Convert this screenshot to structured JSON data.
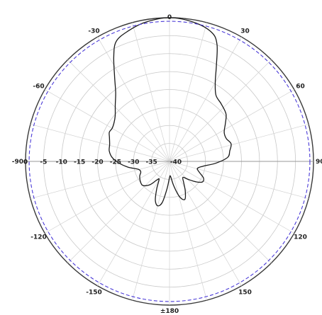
{
  "chart_data": {
    "type": "polar-line",
    "title": "",
    "angular_unit": "deg",
    "zero_direction": "top",
    "angle_direction": "clockwise",
    "angle_ticks": [
      {
        "value": 0,
        "label": "0"
      },
      {
        "value": 30,
        "label": "30"
      },
      {
        "value": 60,
        "label": "60"
      },
      {
        "value": 90,
        "label": "90"
      },
      {
        "value": 120,
        "label": "120"
      },
      {
        "value": 150,
        "label": "150"
      },
      {
        "value": 180,
        "label": "±180"
      },
      {
        "value": -150,
        "label": "-150"
      },
      {
        "value": -120,
        "label": "-120"
      },
      {
        "value": -90,
        "label": "-90"
      },
      {
        "value": -60,
        "label": "-60"
      },
      {
        "value": -30,
        "label": "-30"
      }
    ],
    "radial_range": [
      -40,
      0
    ],
    "radial_ticks": [
      {
        "value": 0,
        "label": "0"
      },
      {
        "value": -5,
        "label": "-5"
      },
      {
        "value": -10,
        "label": "-10"
      },
      {
        "value": -15,
        "label": "-15"
      },
      {
        "value": -20,
        "label": "-20"
      },
      {
        "value": -25,
        "label": "-25"
      },
      {
        "value": -30,
        "label": "-30"
      },
      {
        "value": -35,
        "label": "-35"
      },
      {
        "value": -40,
        "label": "-40"
      }
    ],
    "grid": true,
    "series": [
      {
        "color": "#1a1a1a",
        "style": "solid",
        "points": [
          {
            "angle": 0,
            "r": 0
          },
          {
            "angle": 10,
            "r": -0.7
          },
          {
            "angle": 18,
            "r": -2.2
          },
          {
            "angle": 22,
            "r": -4.8
          },
          {
            "angle": 26,
            "r": -10.3
          },
          {
            "angle": 30,
            "r": -14.6
          },
          {
            "angle": 35,
            "r": -17.5
          },
          {
            "angle": 42,
            "r": -18.5
          },
          {
            "angle": 50,
            "r": -19.5
          },
          {
            "angle": 56,
            "r": -21.3
          },
          {
            "angle": 62,
            "r": -22.8
          },
          {
            "angle": 68,
            "r": -23.0
          },
          {
            "angle": 74,
            "r": -22.2
          },
          {
            "angle": 80,
            "r": -23.0
          },
          {
            "angle": 86,
            "r": -23.8
          },
          {
            "angle": 92,
            "r": -27.0
          },
          {
            "angle": 98,
            "r": -30.5
          },
          {
            "angle": 104,
            "r": -32.0
          },
          {
            "angle": 110,
            "r": -31.2
          },
          {
            "angle": 116,
            "r": -29.5
          },
          {
            "angle": 122,
            "r": -29.2
          },
          {
            "angle": 128,
            "r": -30.8
          },
          {
            "angle": 134,
            "r": -32.8
          },
          {
            "angle": 140,
            "r": -34.2
          },
          {
            "angle": 146,
            "r": -33.0
          },
          {
            "angle": 152,
            "r": -30.7
          },
          {
            "angle": 158,
            "r": -28.6
          },
          {
            "angle": 164,
            "r": -29.7
          },
          {
            "angle": 170,
            "r": -33.0
          },
          {
            "angle": 176,
            "r": -35.8
          },
          {
            "angle": 180,
            "r": -35.5
          },
          {
            "angle": -175,
            "r": -32.5
          },
          {
            "angle": -170,
            "r": -28.4
          },
          {
            "angle": -165,
            "r": -27.2
          },
          {
            "angle": -160,
            "r": -28.5
          },
          {
            "angle": -155,
            "r": -31.6
          },
          {
            "angle": -150,
            "r": -34.2
          },
          {
            "angle": -146,
            "r": -33.8
          },
          {
            "angle": -140,
            "r": -31.5
          },
          {
            "angle": -132,
            "r": -30.0
          },
          {
            "angle": -124,
            "r": -30.2
          },
          {
            "angle": -116,
            "r": -30.8
          },
          {
            "angle": -110,
            "r": -31.5
          },
          {
            "angle": -104,
            "r": -31.0
          },
          {
            "angle": -98,
            "r": -28.4
          },
          {
            "angle": -92,
            "r": -26.0
          },
          {
            "angle": -86,
            "r": -24.0
          },
          {
            "angle": -80,
            "r": -23.0
          },
          {
            "angle": -74,
            "r": -22.7
          },
          {
            "angle": -68,
            "r": -22.0
          },
          {
            "angle": -64,
            "r": -21.4
          },
          {
            "angle": -60,
            "r": -21.6
          },
          {
            "angle": -55,
            "r": -21.2
          },
          {
            "angle": -50,
            "r": -20.3
          },
          {
            "angle": -44,
            "r": -18.3
          },
          {
            "angle": -38,
            "r": -15.7
          },
          {
            "angle": -33,
            "r": -12.0
          },
          {
            "angle": -28,
            "r": -7.0
          },
          {
            "angle": -24,
            "r": -3.5
          },
          {
            "angle": -18,
            "r": -2.0
          },
          {
            "angle": -10,
            "r": -0.7
          },
          {
            "angle": 0,
            "r": 0
          }
        ]
      },
      {
        "color": "#4a3ad8",
        "style": "dashed",
        "points": [
          {
            "angle": 0,
            "r": -1.0
          },
          {
            "angle": 360,
            "r": -1.0
          }
        ]
      }
    ]
  }
}
